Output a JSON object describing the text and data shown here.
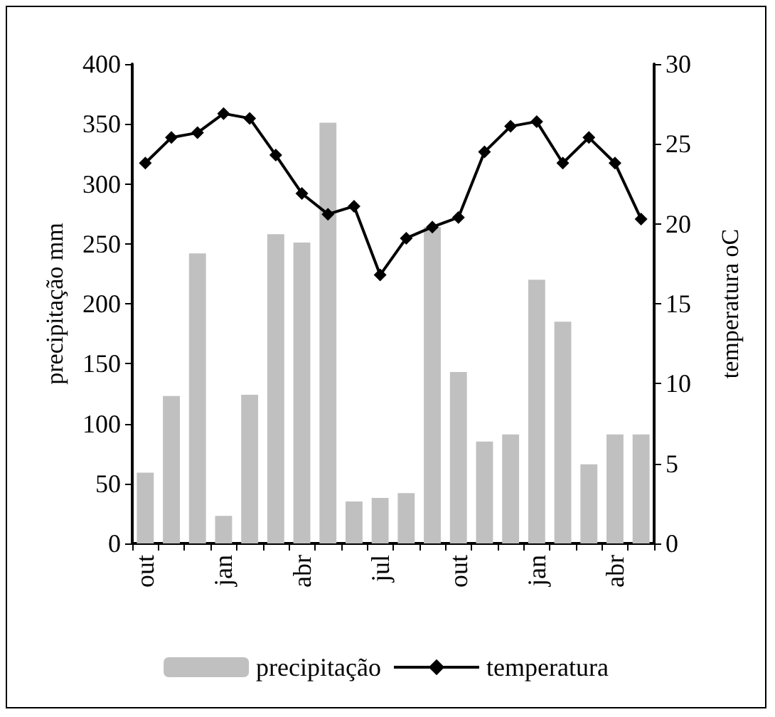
{
  "chart_data": {
    "type": "bar",
    "ylabel": "precipitação mm",
    "y2label": "temperatura oC",
    "categories": [
      "out",
      null,
      null,
      "jan",
      null,
      null,
      "abr",
      null,
      null,
      "jul",
      null,
      null,
      "out",
      null,
      null,
      "jan",
      null,
      null,
      "abr",
      null
    ],
    "series": [
      {
        "name": "precipitação",
        "color": "#c0c0c0",
        "values": [
          59,
          123,
          242,
          23,
          124,
          258,
          251,
          351,
          35,
          38,
          42,
          264,
          143,
          85,
          91,
          220,
          185,
          66,
          91,
          91
        ]
      },
      {
        "name": "temperatura",
        "type": "line",
        "axis": "y2",
        "color": "#000000",
        "marker": "diamond",
        "values": [
          23.8,
          25.4,
          25.7,
          26.9,
          26.6,
          24.3,
          21.9,
          20.6,
          21.1,
          16.8,
          19.1,
          19.8,
          20.4,
          24.5,
          26.1,
          26.4,
          23.8,
          25.4,
          23.8,
          20.3
        ]
      }
    ],
    "ylim": [
      0,
      400
    ],
    "yticks": [
      0,
      50,
      100,
      150,
      200,
      250,
      300,
      350,
      400
    ],
    "y2lim": [
      0,
      30
    ],
    "y2ticks": [
      0,
      5,
      10,
      15,
      20,
      25,
      30
    ],
    "grid": false,
    "legend": "bottom"
  }
}
